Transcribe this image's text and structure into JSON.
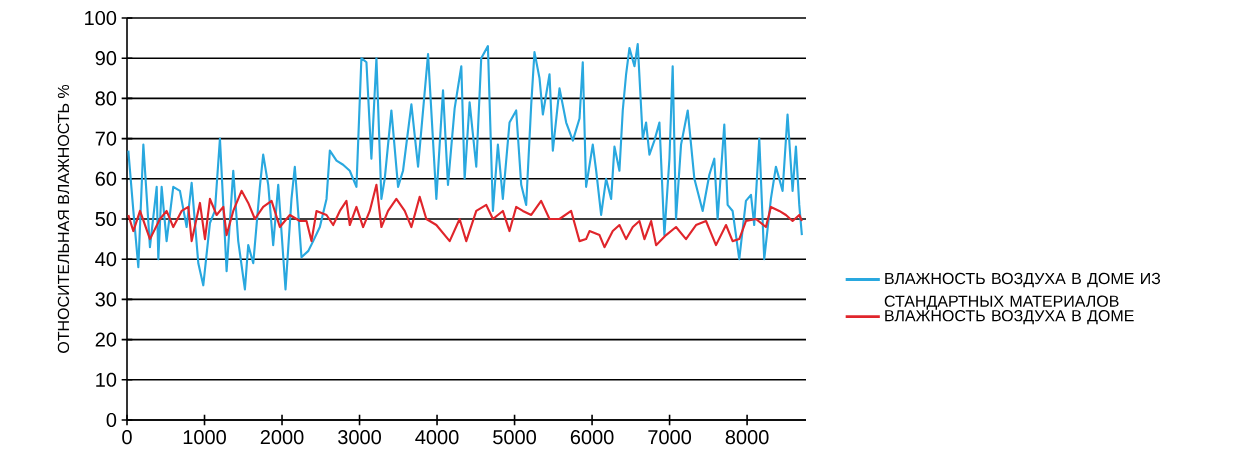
{
  "chart_data": {
    "type": "line",
    "ylabel": "ОТНОСИТЕЛЬНАЯ ВЛАЖНОСТЬ %",
    "xlim": [
      0,
      8760
    ],
    "xticks": [
      0,
      1000,
      2000,
      3000,
      4000,
      5000,
      6000,
      7000,
      8000
    ],
    "ylim": [
      0,
      100
    ],
    "yticks": [
      0,
      10,
      20,
      30,
      40,
      50,
      60,
      70,
      80,
      90,
      100
    ],
    "grid": "y",
    "legend": "right",
    "marker": "none",
    "line_style": "solid",
    "series": [
      {
        "name": "ВЛАЖНОСТЬ ВОЗДУХА В ДОМЕ ИЗ СТАНДАРТНЫХ МАТЕРИАЛОВ",
        "color": "#29a8df",
        "x": [
          17,
          82,
          146,
          211,
          296,
          383,
          404,
          447,
          511,
          597,
          683,
          769,
          834,
          920,
          984,
          1070,
          1134,
          1199,
          1285,
          1371,
          1435,
          1521,
          1564,
          1629,
          1714,
          1757,
          1822,
          1886,
          1951,
          2045,
          2122,
          2165,
          2251,
          2337,
          2402,
          2488,
          2574,
          2617,
          2703,
          2788,
          2874,
          2960,
          3024,
          3089,
          3153,
          3218,
          3282,
          3325,
          3411,
          3497,
          3561,
          3669,
          3755,
          3884,
          3991,
          4077,
          4141,
          4227,
          4313,
          4356,
          4420,
          4506,
          4570,
          4656,
          4721,
          4785,
          4849,
          4935,
          5021,
          5086,
          5150,
          5215,
          5257,
          5322,
          5365,
          5451,
          5494,
          5580,
          5666,
          5752,
          5838,
          5880,
          5923,
          6009,
          6053,
          6117,
          6181,
          6246,
          6289,
          6353,
          6396,
          6439,
          6482,
          6547,
          6589,
          6654,
          6697,
          6740,
          6804,
          6869,
          6933,
          6998,
          7040,
          7083,
          7148,
          7234,
          7320,
          7427,
          7513,
          7577,
          7620,
          7706,
          7749,
          7813,
          7899,
          7985,
          8050,
          8092,
          8157,
          8221,
          8307,
          8372,
          8458,
          8522,
          8587,
          8630,
          8673,
          8707
        ],
        "values": [
          67,
          52,
          38,
          68.5,
          43,
          58,
          40,
          58,
          44.5,
          58,
          57,
          48,
          59,
          39,
          33.5,
          49,
          52,
          70,
          37,
          62,
          44.5,
          32.5,
          43.5,
          39,
          58,
          66,
          58.5,
          43.5,
          58.5,
          32.5,
          55,
          63,
          40.5,
          42,
          44.5,
          48,
          55,
          67,
          64.5,
          63.5,
          62,
          58,
          90,
          89,
          65,
          90,
          55,
          60,
          77,
          58,
          62,
          78.5,
          63,
          91,
          55,
          82,
          58.5,
          77.5,
          88,
          60,
          79,
          63,
          90,
          93,
          52,
          68.5,
          55,
          74,
          77,
          58.5,
          53.5,
          78.5,
          91.5,
          85,
          76,
          86,
          67,
          82.5,
          74,
          69.5,
          75,
          89,
          58,
          68.5,
          62,
          51,
          60,
          55,
          68,
          62,
          77,
          86,
          92.5,
          88,
          93.5,
          70,
          74,
          66,
          69.5,
          74,
          46,
          65,
          88,
          50,
          68.5,
          77,
          60,
          52,
          61,
          65,
          50,
          73.5,
          53.5,
          52,
          40,
          54.5,
          56,
          48.5,
          70,
          40,
          55,
          63,
          57,
          76,
          57,
          68,
          53.5,
          46
        ]
      },
      {
        "name": "ВЛАЖНОСТЬ ВОЗДУХА В ДОМЕ",
        "color": "#e0252b",
        "x": [
          17,
          82,
          168,
          296,
          425,
          511,
          597,
          705,
          791,
          834,
          941,
          1006,
          1070,
          1156,
          1242,
          1285,
          1371,
          1478,
          1564,
          1650,
          1757,
          1865,
          1972,
          2101,
          2230,
          2316,
          2380,
          2445,
          2574,
          2660,
          2746,
          2831,
          2874,
          2960,
          3046,
          3132,
          3218,
          3282,
          3368,
          3475,
          3583,
          3669,
          3776,
          3862,
          3991,
          4163,
          4291,
          4377,
          4506,
          4635,
          4721,
          4849,
          4935,
          5021,
          5107,
          5215,
          5343,
          5451,
          5580,
          5730,
          5838,
          5923,
          5967,
          6096,
          6160,
          6267,
          6353,
          6439,
          6525,
          6611,
          6676,
          6762,
          6826,
          6955,
          7083,
          7212,
          7341,
          7470,
          7599,
          7728,
          7813,
          7899,
          7985,
          8114,
          8243,
          8307,
          8415,
          8501,
          8587,
          8673,
          8707
        ],
        "values": [
          51,
          47,
          52,
          45,
          50,
          52,
          48,
          52,
          53,
          44.5,
          54,
          45,
          55,
          51,
          53,
          46,
          52,
          57,
          54,
          50,
          53,
          54.5,
          48,
          51,
          49.5,
          49.5,
          44.5,
          52,
          51,
          48.5,
          52,
          54.5,
          48.5,
          53,
          48,
          52,
          58.5,
          48,
          52,
          55,
          52,
          48,
          55.5,
          50,
          48.5,
          44.5,
          50,
          44.5,
          52,
          53.5,
          50,
          52,
          47,
          53,
          52,
          51,
          54.5,
          50,
          50,
          52,
          44.5,
          45,
          47,
          46,
          43,
          47,
          48.5,
          45,
          48,
          49.5,
          45,
          49.5,
          43.5,
          46,
          48,
          45,
          48.5,
          49.5,
          43.5,
          48.5,
          44.5,
          45,
          49.5,
          50,
          48,
          53,
          52,
          51,
          49.5,
          51,
          49.5
        ]
      }
    ]
  }
}
